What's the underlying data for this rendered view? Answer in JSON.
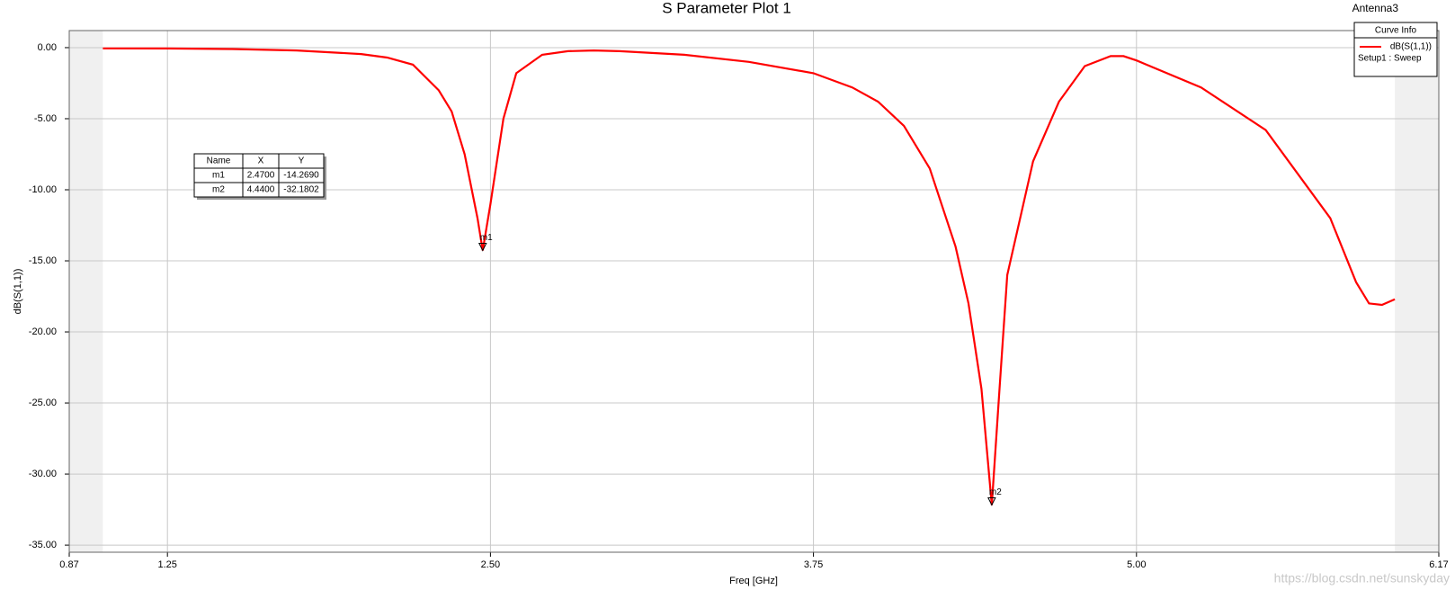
{
  "chart_data": {
    "type": "line",
    "title": "S Parameter Plot 1",
    "project": "Antenna3",
    "x_label": "Freq [GHz]",
    "y_label": "dB(S(1,1))",
    "xlim": [
      0.87,
      6.17
    ],
    "ylim": [
      -35.5,
      1.2
    ],
    "xticks": [
      0.87,
      1.25,
      {
        "value": 2.5,
        "label": "2.50"
      },
      3.75,
      {
        "value": 5,
        "label": "5.00"
      },
      6.17
    ],
    "yticks": [
      {
        "value": 0,
        "label": "0.00"
      },
      {
        "value": -5,
        "label": "-5.00"
      },
      {
        "value": -10,
        "label": "-10.00"
      },
      {
        "value": -15,
        "label": "-15.00"
      },
      {
        "value": -20,
        "label": "-20.00"
      },
      {
        "value": -25,
        "label": "-25.00"
      },
      {
        "value": -30,
        "label": "-30.00"
      },
      {
        "value": -35,
        "label": "-35.00"
      }
    ],
    "grid": true,
    "legend_title": "Curve Info",
    "legend_subtitle": "Setup1 : Sweep",
    "legend_position": "upper right",
    "x": [
      1.0,
      1.25,
      1.5,
      1.75,
      2.0,
      2.1,
      2.2,
      2.3,
      2.35,
      2.4,
      2.45,
      2.47,
      2.5,
      2.55,
      2.6,
      2.7,
      2.8,
      2.9,
      3.0,
      3.25,
      3.5,
      3.75,
      3.9,
      4.0,
      4.1,
      4.2,
      4.3,
      4.35,
      4.4,
      4.44,
      4.47,
      4.5,
      4.6,
      4.7,
      4.8,
      4.9,
      4.95,
      5.0,
      5.25,
      5.5,
      5.75,
      5.85,
      5.9,
      5.95,
      6.0
    ],
    "series": [
      {
        "name": "dB(S(1,1))",
        "color": "#ff0000",
        "values": [
          -0.05,
          -0.06,
          -0.1,
          -0.2,
          -0.45,
          -0.7,
          -1.2,
          -3,
          -4.5,
          -7.5,
          -12,
          -14.269,
          -11,
          -5,
          -1.8,
          -0.5,
          -0.25,
          -0.2,
          -0.25,
          -0.5,
          -1.0,
          -1.8,
          -2.8,
          -3.8,
          -5.5,
          -8.5,
          -14,
          -18,
          -24,
          -32.1802,
          -24,
          -16,
          -8,
          -3.8,
          -1.3,
          -0.6,
          -0.6,
          -0.9,
          -2.8,
          -5.8,
          -12,
          -16.5,
          -18,
          -18.1,
          -17.7
        ]
      }
    ],
    "marker_table": {
      "columns": [
        "Name",
        "X",
        "Y"
      ]
    },
    "markers": [
      {
        "name": "m1",
        "x": 2.47,
        "y": -14.269,
        "x_label": "2.4700",
        "y_label": "-14.2690"
      },
      {
        "name": "m2",
        "x": 4.44,
        "y": -32.1802,
        "x_label": "4.4400",
        "y_label": "-32.1802"
      }
    ],
    "watermark": "https://blog.csdn.net/sunskyday"
  }
}
